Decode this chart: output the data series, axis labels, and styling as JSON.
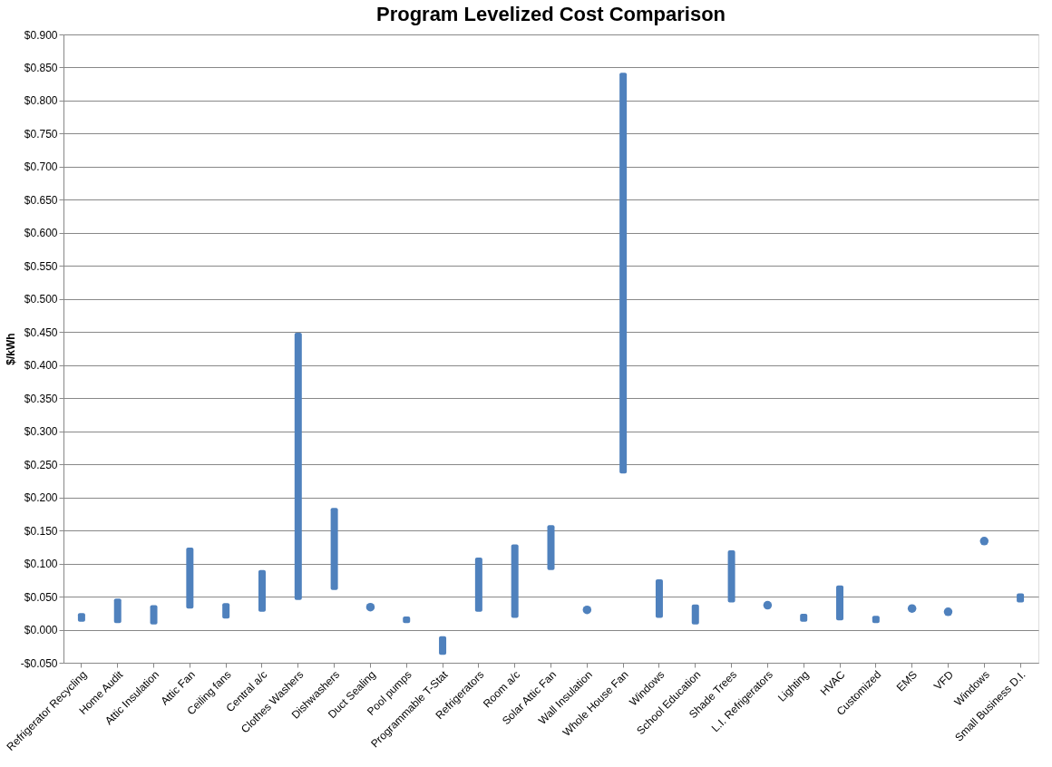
{
  "chart_data": {
    "type": "bar",
    "title": "Program Levelized Cost Comparison",
    "ylabel": "$/kWh",
    "categories": [
      "Refrigerator Recycling",
      "Home Audit",
      "Attic Insulation",
      "Attic Fan",
      "Ceiling fans",
      "Central a/c",
      "Clothes Washers",
      "Dishwashers",
      "Duct Sealing",
      "Pool pumps",
      "Programmable T-Stat",
      "Refrigerators",
      "Room a/c",
      "Solar Attic Fan",
      "Wall Insulation",
      "Whole House Fan",
      "Windows",
      "School Education",
      "Shade Trees",
      "L.I. Refrigerators",
      "Lighting",
      "HVAC",
      "Customized",
      "EMS",
      "VFD",
      "Windows",
      "Small Business D.I."
    ],
    "series": [
      {
        "color": "#4f81bd",
        "base": [
          0.012,
          0.01,
          0.008,
          0.032,
          0.017,
          0.027,
          0.045,
          0.06,
          null,
          0.01,
          -0.038,
          0.027,
          0.018,
          0.09,
          null,
          0.236,
          0.018,
          0.008,
          0.041,
          null,
          0.012,
          0.014,
          0.01,
          null,
          null,
          null,
          0.041
        ],
        "values": [
          0.013,
          0.037,
          0.029,
          0.092,
          0.023,
          0.063,
          0.404,
          0.124,
          null,
          0.01,
          0.028,
          0.082,
          0.111,
          0.068,
          null,
          0.606,
          0.058,
          0.03,
          0.079,
          null,
          0.012,
          0.053,
          0.011,
          null,
          null,
          null,
          0.014
        ]
      },
      {
        "type": "scatter",
        "color": "#4f81bd",
        "marker": "circle",
        "values": [
          null,
          null,
          null,
          null,
          null,
          null,
          null,
          null,
          0.034,
          null,
          null,
          null,
          null,
          null,
          0.03,
          null,
          null,
          null,
          null,
          0.037,
          null,
          null,
          null,
          0.032,
          0.027,
          0.134,
          null
        ]
      }
    ],
    "ylim": [
      -0.05,
      0.9
    ],
    "yticks": [
      {
        "value": -0.05,
        "label": "-$0.050"
      },
      {
        "value": 0,
        "label": "$0.000"
      },
      {
        "value": 0.05,
        "label": "$0.050"
      },
      {
        "value": 0.1,
        "label": "$0.100"
      },
      {
        "value": 0.15,
        "label": "$0.150"
      },
      {
        "value": 0.2,
        "label": "$0.200"
      },
      {
        "value": 0.25,
        "label": "$0.250"
      },
      {
        "value": 0.3,
        "label": "$0.300"
      },
      {
        "value": 0.35,
        "label": "$0.350"
      },
      {
        "value": 0.4,
        "label": "$0.400"
      },
      {
        "value": 0.45,
        "label": "$0.450"
      },
      {
        "value": 0.5,
        "label": "$0.500"
      },
      {
        "value": 0.55,
        "label": "$0.550"
      },
      {
        "value": 0.6,
        "label": "$0.600"
      },
      {
        "value": 0.65,
        "label": "$0.650"
      },
      {
        "value": 0.7,
        "label": "$0.700"
      },
      {
        "value": 0.75,
        "label": "$0.750"
      },
      {
        "value": 0.8,
        "label": "$0.800"
      },
      {
        "value": 0.85,
        "label": "$0.850"
      },
      {
        "value": 0.9,
        "label": "$0.900"
      }
    ],
    "grid": "y"
  }
}
